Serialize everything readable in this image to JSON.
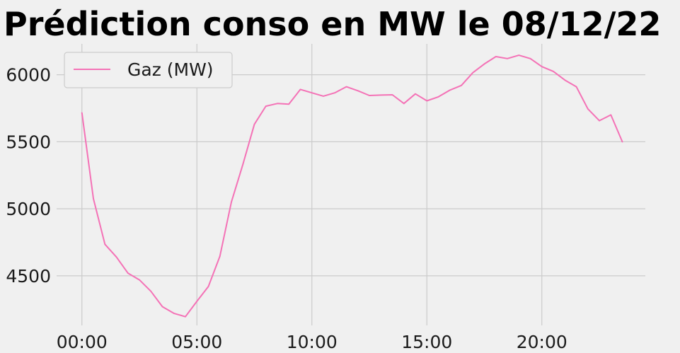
{
  "chart_data": {
    "type": "line",
    "title": "Prédiction conso en MW le 08/12/22",
    "xlabel": "",
    "ylabel": "",
    "x_tick_labels": [
      "00:00",
      "05:00",
      "10:00",
      "15:00",
      "20:00"
    ],
    "x_tick_hours": [
      0,
      5,
      10,
      15,
      20
    ],
    "y_ticks": [
      4500,
      5000,
      5500,
      6000
    ],
    "xlim": [
      -1.1,
      24.5
    ],
    "ylim": [
      4130,
      6230
    ],
    "grid": true,
    "legend_position": "top-left",
    "series": [
      {
        "name": "Gaz (MW)",
        "color": "#f472b6",
        "x": [
          "00:00",
          "00:30",
          "01:00",
          "01:30",
          "02:00",
          "02:30",
          "03:00",
          "03:30",
          "04:00",
          "04:30",
          "05:00",
          "05:30",
          "06:00",
          "06:30",
          "07:00",
          "07:30",
          "08:00",
          "08:30",
          "09:00",
          "09:30",
          "10:00",
          "10:30",
          "11:00",
          "11:30",
          "12:00",
          "12:30",
          "13:00",
          "13:30",
          "14:00",
          "14:30",
          "15:00",
          "15:30",
          "16:00",
          "16:30",
          "17:00",
          "17:30",
          "18:00",
          "18:30",
          "19:00",
          "19:30",
          "20:00",
          "20:30",
          "21:00",
          "21:30",
          "22:00",
          "22:30",
          "23:00",
          "23:30"
        ],
        "values": [
          5715,
          5075,
          4735,
          4640,
          4520,
          4470,
          4385,
          4270,
          4220,
          4195,
          4310,
          4420,
          4645,
          5050,
          5330,
          5630,
          5765,
          5785,
          5780,
          5890,
          5865,
          5840,
          5865,
          5910,
          5880,
          5845,
          5848,
          5850,
          5785,
          5857,
          5805,
          5835,
          5885,
          5920,
          6015,
          6080,
          6135,
          6120,
          6145,
          6120,
          6060,
          6025,
          5960,
          5910,
          5745,
          5657,
          5700,
          5500
        ]
      }
    ]
  }
}
